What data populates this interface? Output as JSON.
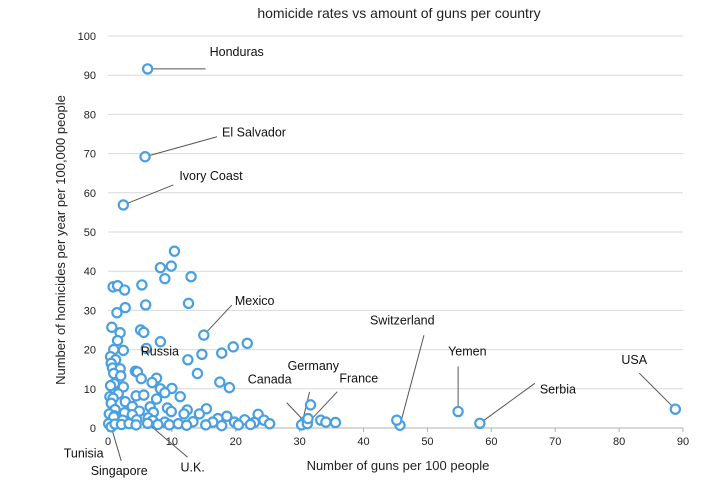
{
  "chart_data": {
    "type": "scatter",
    "title": "homicide rates vs amount of guns per country",
    "xlabel": "Number of guns per 100 people",
    "ylabel": "Number of homicides per year per 100,000 people",
    "xlim": [
      0,
      90
    ],
    "ylim": [
      0,
      100
    ],
    "xticks": [
      0,
      10,
      20,
      30,
      40,
      50,
      60,
      70,
      80,
      90
    ],
    "yticks": [
      0,
      10,
      20,
      30,
      40,
      50,
      60,
      70,
      80,
      90,
      100
    ],
    "grid": "horizontal",
    "marker_color": "#4a9fe0",
    "annotations": [
      {
        "label": "Honduras",
        "x": 6.2,
        "y": 91.6
      },
      {
        "label": "El Salvador",
        "x": 5.8,
        "y": 69.2
      },
      {
        "label": "Ivory Coast",
        "x": 2.4,
        "y": 56.9
      },
      {
        "label": "Mexico",
        "x": 15.0,
        "y": 23.7
      },
      {
        "label": "Russia",
        "x": 8.9,
        "y": 9.0
      },
      {
        "label": "Switzerland",
        "x": 45.7,
        "y": 0.7
      },
      {
        "label": "Yemen",
        "x": 54.8,
        "y": 4.2
      },
      {
        "label": "Serbia",
        "x": 58.2,
        "y": 1.2
      },
      {
        "label": "USA",
        "x": 88.8,
        "y": 4.8
      },
      {
        "label": "Canada",
        "x": 30.8,
        "y": 1.6
      },
      {
        "label": "Germany",
        "x": 30.3,
        "y": 0.8
      },
      {
        "label": "France",
        "x": 31.2,
        "y": 1.1
      },
      {
        "label": "Tunisia",
        "x": 0.1,
        "y": 1.1
      },
      {
        "label": "Singapore",
        "x": 0.5,
        "y": 0.3
      },
      {
        "label": "U.K.",
        "x": 6.2,
        "y": 1.2
      }
    ],
    "points": [
      [
        6.2,
        91.6
      ],
      [
        5.8,
        69.2
      ],
      [
        2.4,
        56.9
      ],
      [
        10.4,
        45.1
      ],
      [
        8.2,
        40.9
      ],
      [
        9.9,
        41.3
      ],
      [
        8.9,
        38.1
      ],
      [
        13.0,
        38.6
      ],
      [
        0.8,
        36.0
      ],
      [
        1.5,
        36.3
      ],
      [
        5.3,
        36.5
      ],
      [
        2.6,
        35.2
      ],
      [
        5.9,
        31.4
      ],
      [
        12.6,
        31.8
      ],
      [
        1.4,
        29.4
      ],
      [
        2.7,
        30.7
      ],
      [
        0.6,
        25.7
      ],
      [
        5.1,
        25.0
      ],
      [
        5.6,
        24.4
      ],
      [
        1.9,
        24.3
      ],
      [
        15.0,
        23.7
      ],
      [
        8.2,
        22.0
      ],
      [
        21.8,
        21.6
      ],
      [
        19.6,
        20.7
      ],
      [
        1.5,
        22.3
      ],
      [
        2.4,
        19.8
      ],
      [
        6.0,
        20.3
      ],
      [
        0.9,
        20.0
      ],
      [
        0.4,
        18.2
      ],
      [
        14.7,
        18.8
      ],
      [
        17.8,
        19.1
      ],
      [
        12.5,
        17.4
      ],
      [
        1.2,
        17.4
      ],
      [
        0.5,
        16.5
      ],
      [
        0.7,
        15.3
      ],
      [
        1.9,
        15.1
      ],
      [
        4.3,
        14.5
      ],
      [
        4.6,
        14.3
      ],
      [
        0.9,
        13.9
      ],
      [
        14.0,
        13.9
      ],
      [
        2.0,
        13.3
      ],
      [
        5.2,
        12.6
      ],
      [
        7.6,
        12.7
      ],
      [
        6.9,
        11.6
      ],
      [
        1.0,
        11.3
      ],
      [
        0.4,
        10.8
      ],
      [
        17.5,
        11.7
      ],
      [
        19.0,
        10.3
      ],
      [
        2.4,
        10.5
      ],
      [
        8.2,
        10.0
      ],
      [
        10.0,
        10.1
      ],
      [
        8.9,
        9.0
      ],
      [
        1.6,
        8.7
      ],
      [
        4.4,
        8.2
      ],
      [
        5.6,
        8.4
      ],
      [
        11.3,
        8.0
      ],
      [
        0.3,
        8.0
      ],
      [
        0.8,
        7.6
      ],
      [
        7.6,
        7.4
      ],
      [
        2.7,
        6.7
      ],
      [
        0.5,
        6.3
      ],
      [
        3.8,
        5.5
      ],
      [
        6.6,
        5.4
      ],
      [
        9.3,
        5.1
      ],
      [
        15.4,
        4.9
      ],
      [
        12.4,
        4.6
      ],
      [
        1.1,
        4.7
      ],
      [
        4.9,
        4.3
      ],
      [
        7.1,
        4.0
      ],
      [
        9.9,
        4.2
      ],
      [
        14.3,
        3.6
      ],
      [
        0.2,
        3.6
      ],
      [
        11.9,
        3.6
      ],
      [
        2.6,
        3.9
      ],
      [
        3.8,
        3.4
      ],
      [
        1.0,
        3.1
      ],
      [
        18.6,
        3.0
      ],
      [
        23.5,
        3.5
      ],
      [
        0.9,
        2.8
      ],
      [
        6.3,
        2.6
      ],
      [
        17.2,
        2.4
      ],
      [
        21.4,
        2.1
      ],
      [
        24.4,
        2.0
      ],
      [
        2.3,
        2.0
      ],
      [
        4.5,
        2.1
      ],
      [
        7.0,
        1.9
      ],
      [
        13.3,
        1.6
      ],
      [
        8.9,
        1.5
      ],
      [
        16.4,
        1.5
      ],
      [
        19.8,
        1.5
      ],
      [
        22.9,
        1.4
      ],
      [
        25.3,
        1.1
      ],
      [
        0.1,
        1.1
      ],
      [
        0.5,
        0.3
      ],
      [
        1.1,
        1.0
      ],
      [
        2.1,
        0.9
      ],
      [
        3.3,
        1.1
      ],
      [
        4.4,
        0.8
      ],
      [
        6.2,
        1.2
      ],
      [
        7.8,
        0.9
      ],
      [
        9.6,
        0.8
      ],
      [
        11.0,
        1.1
      ],
      [
        12.3,
        0.7
      ],
      [
        15.3,
        0.8
      ],
      [
        17.8,
        0.6
      ],
      [
        20.4,
        0.8
      ],
      [
        22.3,
        0.9
      ],
      [
        30.8,
        1.6
      ],
      [
        30.3,
        0.8
      ],
      [
        31.2,
        1.1
      ],
      [
        31.7,
        5.9
      ],
      [
        31.3,
        2.4
      ],
      [
        33.3,
        2.0
      ],
      [
        34.1,
        1.5
      ],
      [
        35.6,
        1.4
      ],
      [
        45.7,
        0.7
      ],
      [
        45.2,
        2.0
      ],
      [
        54.8,
        4.2
      ],
      [
        58.2,
        1.2
      ],
      [
        88.8,
        4.8
      ]
    ]
  }
}
